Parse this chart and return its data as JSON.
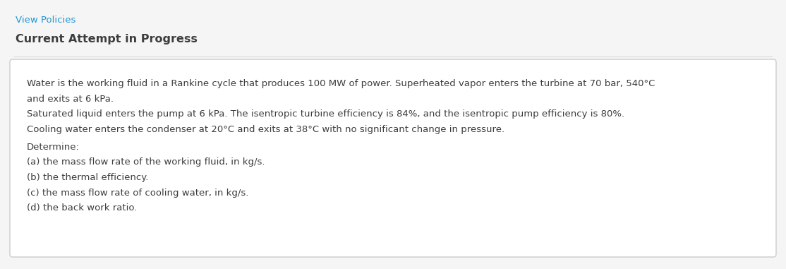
{
  "bg_color": "#f5f5f5",
  "card_bg_color": "#ffffff",
  "card_border_color": "#cccccc",
  "link_text": "View Policies",
  "link_color": "#2196d3",
  "header_text": "Current Attempt in Progress",
  "header_color": "#3d3d3d",
  "body_lines": [
    "Water is the working fluid in a Rankine cycle that produces 100 MW of power. Superheated vapor enters the turbine at 70 bar, 540°C",
    "and exits at 6 kPa.",
    "Saturated liquid enters the pump at 6 kPa. The isentropic turbine efficiency is 84%, and the isentropic pump efficiency is 80%.",
    "Cooling water enters the condenser at 20°C and exits at 38°C with no significant change in pressure.",
    "Determine:",
    "(a) the mass flow rate of the working fluid, in kg/s.",
    "(b) the thermal efficiency.",
    "(c) the mass flow rate of cooling water, in kg/s.",
    "(d) the back work ratio."
  ],
  "body_color": "#3d3d3d",
  "body_fontsize": 9.5,
  "link_fontsize": 9.5,
  "header_fontsize": 11.5,
  "fig_width": 11.14,
  "fig_height": 3.81,
  "dpi": 100
}
